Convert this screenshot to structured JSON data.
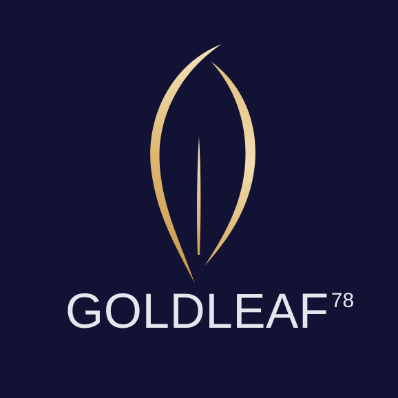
{
  "logo": {
    "name": "GOLDLEAF",
    "superscript": "78",
    "icon": "gold-leaf-icon",
    "colors": {
      "background": "#111234",
      "text": "#e6e6ee",
      "gold_light": "#f4e3bd",
      "gold_mid": "#e0b872",
      "gold_dark": "#b98a3e"
    }
  }
}
